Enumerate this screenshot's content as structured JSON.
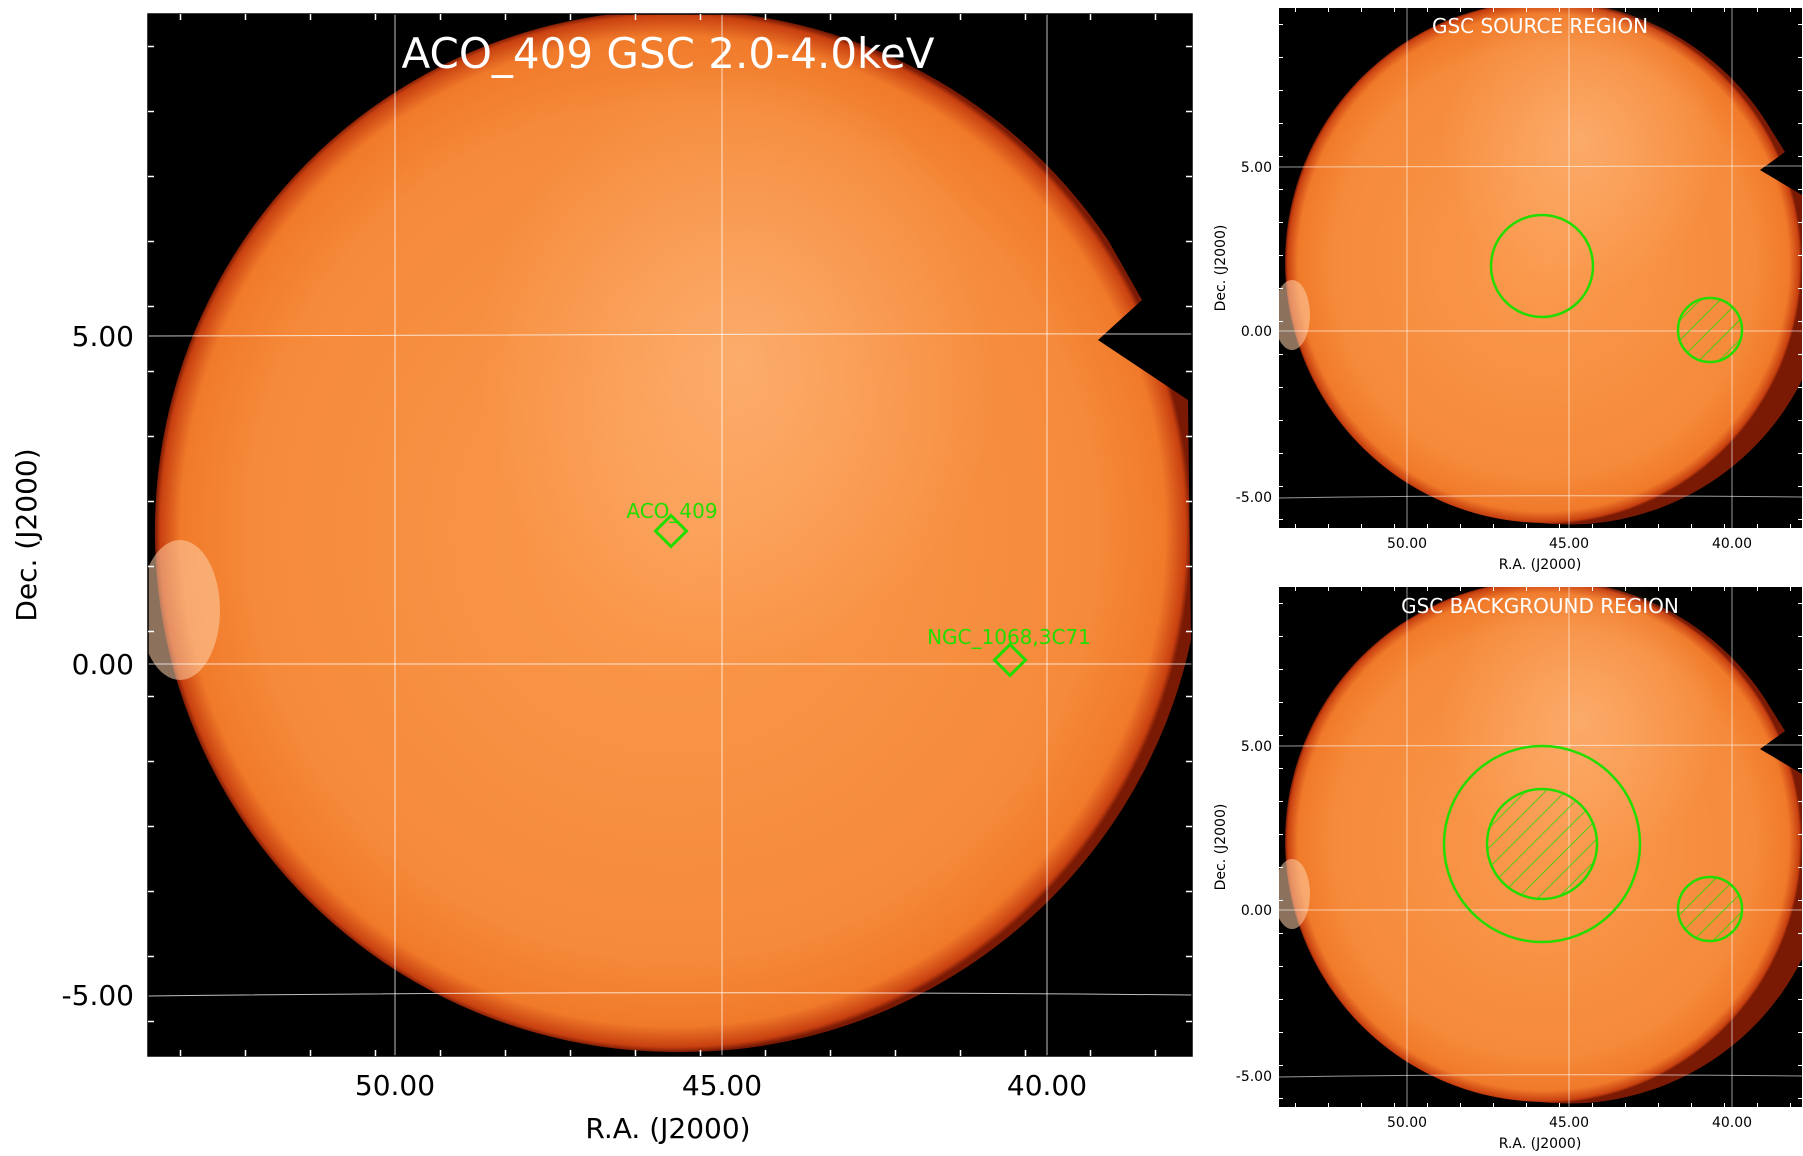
{
  "main": {
    "title": "ACO_409 GSC 2.0-4.0keV",
    "xlabel": "R.A. (J2000)",
    "ylabel": "Dec. (J2000)",
    "xticks": [
      "50.00",
      "45.00",
      "40.00"
    ],
    "yticks": [
      "5.00",
      "0.00",
      "-5.00"
    ],
    "sources": [
      {
        "label": "ACO_409",
        "ra": 44.0,
        "dec": 2.0
      },
      {
        "label": "NGC_1068,3C71",
        "ra": 39.3,
        "dec": 0.0
      }
    ]
  },
  "source_panel": {
    "title": "GSC SOURCE REGION",
    "xlabel": "R.A. (J2000)",
    "ylabel": "Dec. (J2000)",
    "xticks": [
      "50.00",
      "45.00",
      "40.00"
    ],
    "yticks": [
      "5.00",
      "0.00",
      "-5.00"
    ]
  },
  "background_panel": {
    "title": "GSC BACKGROUND REGION",
    "xlabel": "R.A. (J2000)",
    "ylabel": "Dec. (J2000)",
    "xticks": [
      "50.00",
      "45.00",
      "40.00"
    ],
    "yticks": [
      "5.00",
      "0.00",
      "-5.00"
    ]
  },
  "colors": {
    "image": "#f58a3a",
    "region": "#22dd00",
    "grid": "#ffffff",
    "background": "#000000"
  }
}
